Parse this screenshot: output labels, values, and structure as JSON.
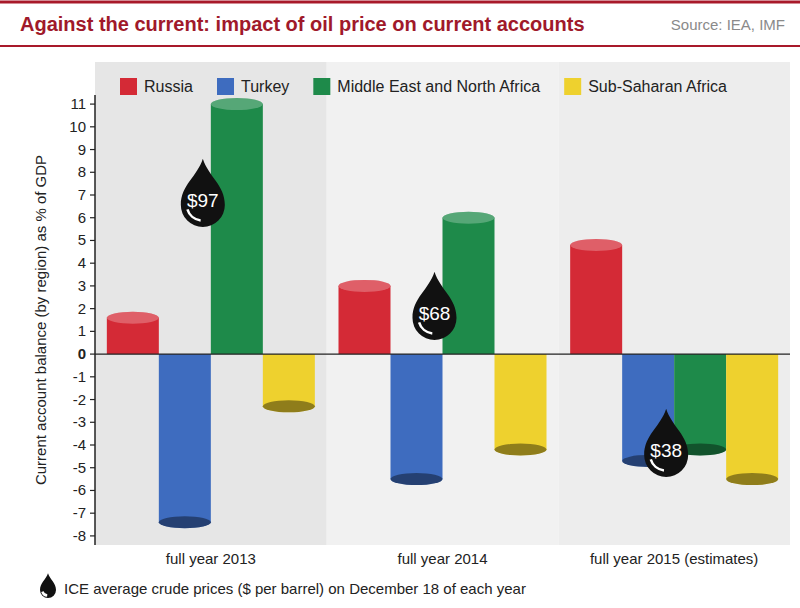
{
  "chart_data": {
    "type": "bar",
    "title": "Against the current: impact of oil price on current accounts",
    "source": "Source: IEA, IMF",
    "y_label": "Current account balance (by region) as % of GDP",
    "categories": [
      "full year 2013",
      "full year 2014",
      "full year 2015 (estimates)"
    ],
    "series": [
      {
        "name": "Russia",
        "color": "#d42a36",
        "values": [
          1.6,
          3.0,
          4.8
        ]
      },
      {
        "name": "Turkey",
        "color": "#3e6cbf",
        "values": [
          -7.4,
          -5.5,
          -4.7
        ]
      },
      {
        "name": "Middle East and North Africa",
        "color": "#1e8a4a",
        "values": [
          11.0,
          6.0,
          -4.2
        ]
      },
      {
        "name": "Sub-Saharan Africa",
        "color": "#eed12e",
        "values": [
          -2.3,
          -4.2,
          -5.5
        ]
      }
    ],
    "annotations": [
      "$97",
      "$68",
      "$38"
    ],
    "note": "ICE average crude prices ($ per barrel) on December 18 of each year",
    "ylim": [
      -8.4,
      11.4
    ],
    "yticks": [
      -8,
      -7,
      -6,
      -5,
      -4,
      -3,
      -2,
      -1,
      0,
      1,
      2,
      3,
      4,
      5,
      6,
      7,
      8,
      9,
      10,
      11
    ],
    "grid": false,
    "legend": "top"
  }
}
